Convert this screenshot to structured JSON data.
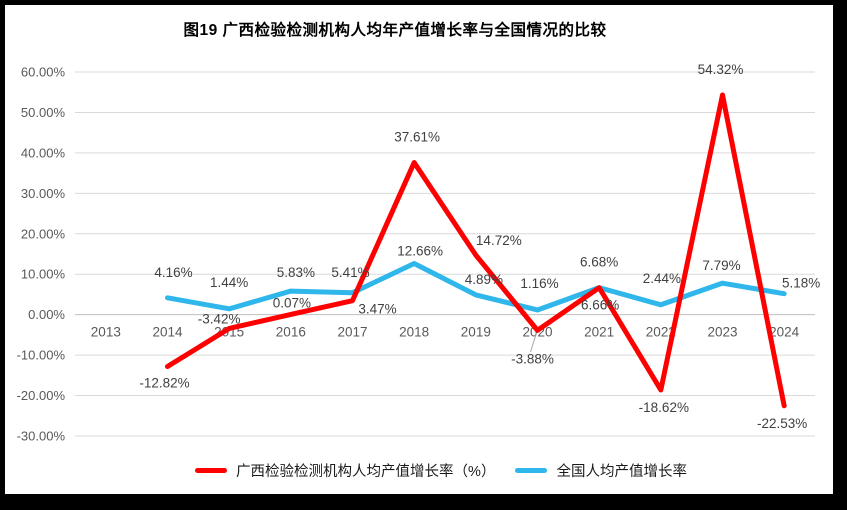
{
  "frame": {
    "background": "#000000",
    "canvas_background": "#FFFFFF"
  },
  "chart_data": {
    "type": "line",
    "title": "图19 广西检验检测机构人均年产值增长率与全国情况的比较",
    "categories": [
      "2013",
      "2014",
      "2015",
      "2016",
      "2017",
      "2018",
      "2019",
      "2020",
      "2021",
      "2022",
      "2023",
      "2024"
    ],
    "series": [
      {
        "name": "广西检验检测机构人均产值增长率（%）",
        "color": "#FF0000",
        "values": [
          null,
          -12.82,
          -3.42,
          0.07,
          3.47,
          37.61,
          14.72,
          -3.88,
          6.66,
          -18.62,
          54.32,
          -22.53
        ]
      },
      {
        "name": "全国人均产值增长率",
        "color": "#2FB6EA",
        "values": [
          null,
          4.16,
          1.44,
          5.83,
          5.41,
          12.66,
          4.89,
          1.16,
          6.68,
          2.44,
          7.79,
          5.18
        ]
      }
    ],
    "y_axis": {
      "min": -30,
      "max": 60,
      "step": 10,
      "tick_labels": [
        "60.00%",
        "50.00%",
        "40.00%",
        "30.00%",
        "20.00%",
        "10.00%",
        "0.00%",
        "-10.00%",
        "-20.00%",
        "-30.00%"
      ]
    },
    "x_axis": {
      "label_format": "year"
    },
    "grid": true,
    "legend_position": "bottom",
    "data_label_format": "0.00%",
    "colors": {
      "gridline": "#D9D9D9",
      "zero_line": "#BFBFBF",
      "axis_text": "#595959",
      "data_label_text": "#404040",
      "leader_line": "#A6A6A6"
    }
  }
}
